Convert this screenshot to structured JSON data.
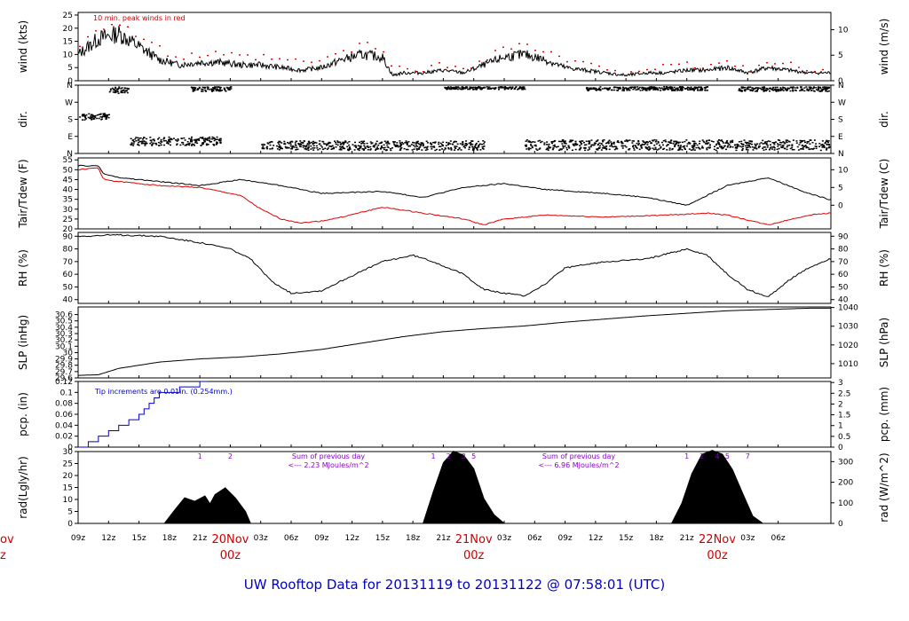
{
  "footer": {
    "title": "UW Rooftop Data for 20131119  to  20131122 @ 07:58:01  (UTC)"
  },
  "chart_data": [
    {
      "type": "line",
      "panel": "wind",
      "ylabel": "wind (kts)",
      "ylabel_right": "wind (m/s)",
      "ylim": [
        0,
        26
      ],
      "yticks": [
        0,
        5,
        10,
        15,
        20,
        25
      ],
      "yticks_right": [
        0,
        5,
        10
      ],
      "annotation": "10 min. peak winds in red",
      "series": [
        {
          "color": "#000000",
          "x": [
            0,
            2,
            4,
            6,
            8,
            9,
            10,
            12,
            14,
            16,
            18,
            20,
            22,
            24,
            26,
            28,
            30,
            31,
            32,
            34,
            36,
            38,
            40,
            42,
            44,
            46,
            48,
            50,
            52,
            54,
            56,
            58,
            60,
            62,
            64,
            66,
            68,
            70,
            72,
            74
          ],
          "y": [
            10,
            16,
            18,
            13,
            8,
            7,
            6,
            7,
            7,
            6,
            6,
            5,
            4,
            5,
            8,
            10,
            9,
            2,
            3,
            3,
            4,
            3,
            6,
            9,
            10,
            8,
            5,
            4,
            3,
            2,
            3,
            3,
            4,
            4,
            5,
            3,
            5,
            4,
            3,
            3
          ]
        },
        {
          "color": "#dd0000",
          "x": [
            0,
            2,
            4,
            6,
            8,
            9,
            10,
            12,
            14,
            16,
            18,
            20,
            22,
            24,
            26,
            28,
            30,
            31,
            32,
            34,
            36,
            38,
            40,
            42,
            44,
            46,
            48,
            50,
            52,
            54,
            56,
            58,
            60,
            62,
            64,
            66,
            68,
            70,
            72,
            74
          ],
          "y": [
            14,
            21,
            22,
            17,
            12,
            10,
            9,
            10,
            10,
            9,
            9,
            8,
            7,
            8,
            11,
            14,
            12,
            4,
            5,
            5,
            6,
            5,
            9,
            13,
            14,
            11,
            8,
            6,
            5,
            4,
            5,
            5,
            6,
            6,
            7,
            5,
            7,
            6,
            5,
            5
          ]
        }
      ]
    },
    {
      "type": "scatter",
      "panel": "dir",
      "ylabel": "dir.",
      "ylabel_right": "dir.",
      "ylim": [
        0,
        360
      ],
      "yticks": [
        0,
        90,
        180,
        270,
        360
      ],
      "yticklabels": [
        "N",
        "E",
        "S",
        "W",
        "N"
      ],
      "segments": [
        {
          "x": [
            0,
            3
          ],
          "y": [
            180,
            215
          ]
        },
        {
          "x": [
            3,
            5
          ],
          "y": [
            320,
            355
          ]
        },
        {
          "x": [
            5,
            14
          ],
          "y": [
            45,
            90
          ]
        },
        {
          "x": [
            11,
            15
          ],
          "y": [
            330,
            355
          ]
        },
        {
          "x": [
            18,
            40
          ],
          "y": [
            20,
            70
          ]
        },
        {
          "x": [
            36,
            44
          ],
          "y": [
            340,
            355
          ]
        },
        {
          "x": [
            44,
            74
          ],
          "y": [
            20,
            75
          ]
        },
        {
          "x": [
            50,
            62
          ],
          "y": [
            335,
            355
          ]
        },
        {
          "x": [
            65,
            74
          ],
          "y": [
            330,
            355
          ]
        }
      ]
    },
    {
      "type": "line",
      "panel": "temp",
      "ylabel": "Tair/Tdew (F)",
      "ylabel_right": "Tair/Tdew (C)",
      "ylim": [
        20,
        56
      ],
      "yticks": [
        20,
        25,
        30,
        35,
        40,
        45,
        50,
        55
      ],
      "yticks_right": [
        0,
        5,
        10
      ],
      "series": [
        {
          "color": "#000000",
          "x": [
            0,
            2,
            2.5,
            4,
            8,
            12,
            16,
            20,
            24,
            30,
            34,
            38,
            42,
            46,
            52,
            56,
            60,
            64,
            68,
            72,
            74
          ],
          "y": [
            52,
            52,
            48,
            46,
            44,
            42,
            45,
            42,
            38,
            39,
            36,
            41,
            43,
            40,
            38,
            36,
            32,
            42,
            46,
            38,
            35
          ]
        },
        {
          "color": "#dd0000",
          "x": [
            0,
            2,
            2.5,
            4,
            8,
            12,
            16,
            18,
            20,
            22,
            24,
            26,
            30,
            34,
            38,
            40,
            42,
            46,
            52,
            58,
            62,
            64,
            68,
            72,
            74
          ],
          "y": [
            50,
            51,
            45,
            44,
            42,
            41,
            37,
            30,
            25,
            23,
            24,
            26,
            31,
            28,
            25,
            22,
            25,
            27,
            26,
            27,
            28,
            27,
            22,
            27,
            28
          ]
        }
      ]
    },
    {
      "type": "line",
      "panel": "rh",
      "ylabel": "RH (%)",
      "ylabel_right": "RH (%)",
      "ylim": [
        37,
        93
      ],
      "yticks": [
        40,
        50,
        60,
        70,
        80,
        90
      ],
      "yticks_right": [
        40,
        50,
        60,
        70,
        80,
        90
      ],
      "series": [
        {
          "color": "#000000",
          "x": [
            0,
            4,
            8,
            12,
            15,
            17,
            19,
            21,
            24,
            26,
            30,
            33,
            35,
            38,
            40,
            42,
            44,
            46,
            48,
            52,
            56,
            60,
            62,
            64,
            66,
            68,
            70,
            72,
            74
          ],
          "y": [
            90,
            91,
            90,
            85,
            80,
            72,
            55,
            45,
            47,
            55,
            70,
            75,
            70,
            60,
            48,
            45,
            43,
            52,
            65,
            70,
            72,
            80,
            75,
            60,
            48,
            42,
            55,
            65,
            72
          ]
        }
      ]
    },
    {
      "type": "line",
      "panel": "slp",
      "ylabel": "SLP (inHg)",
      "ylabel_right": "SLP (hPa)",
      "ylim": [
        29.6,
        30.72
      ],
      "yticks": [
        29.6,
        29.7,
        29.8,
        29.9,
        30.0,
        30.1,
        30.2,
        30.3,
        30.4,
        30.5,
        30.6
      ],
      "yticks_right": [
        1010,
        1020,
        1030,
        1040
      ],
      "series": [
        {
          "color": "#000000",
          "x": [
            0,
            2,
            4,
            8,
            12,
            16,
            20,
            24,
            28,
            32,
            36,
            40,
            44,
            48,
            52,
            56,
            60,
            64,
            68,
            72,
            74
          ],
          "y": [
            29.64,
            29.65,
            29.75,
            29.85,
            29.9,
            29.93,
            29.98,
            30.05,
            30.15,
            30.25,
            30.33,
            30.38,
            30.42,
            30.48,
            30.53,
            30.58,
            30.62,
            30.66,
            30.68,
            30.7,
            30.7
          ]
        }
      ]
    },
    {
      "type": "line",
      "panel": "pcp",
      "ylabel": "pcp. (in)",
      "ylabel_right": "pcp. (mm)",
      "ylim": [
        0,
        0.12
      ],
      "yticks": [
        0.0,
        0.02,
        0.04,
        0.06,
        0.08,
        0.1,
        0.12
      ],
      "yticks_right": [
        0,
        0.5,
        1,
        1.5,
        2,
        2.5,
        3
      ],
      "annotation": "Tip increments are 0.01in. (0.254mm.)",
      "series": [
        {
          "color": "#0000cc",
          "step": true,
          "x": [
            0,
            1,
            2,
            3,
            4,
            5,
            6,
            6.5,
            7,
            7.5,
            8,
            9,
            10,
            11,
            12,
            12.7
          ],
          "y": [
            0.0,
            0.01,
            0.02,
            0.03,
            0.04,
            0.05,
            0.06,
            0.07,
            0.08,
            0.09,
            0.1,
            0.1,
            0.11,
            0.11,
            0.12,
            0.12
          ]
        }
      ]
    },
    {
      "type": "area",
      "panel": "rad",
      "ylabel": "rad(Lgly/hr)",
      "ylabel_right": "rad (W/m^2)",
      "ylim": [
        0,
        30
      ],
      "yticks": [
        0,
        5,
        10,
        15,
        20,
        25,
        30
      ],
      "yticks_right": [
        0,
        100,
        200,
        300
      ],
      "annotations": [
        "Sum of previous day\n<--- 2.23 MJoules/m^2",
        "Sum of previous day\n<--- 6.96 MJoules/m^2"
      ],
      "top_labels": [
        {
          "x": 12,
          "label": "1"
        },
        {
          "x": 15,
          "label": "2"
        },
        {
          "x": 35,
          "label": "1"
        },
        {
          "x": 36.5,
          "label": "2"
        },
        {
          "x": 38,
          "label": "3"
        },
        {
          "x": 39,
          "label": "5"
        },
        {
          "x": 60,
          "label": "1"
        },
        {
          "x": 61.5,
          "label": "2"
        },
        {
          "x": 63,
          "label": "4"
        },
        {
          "x": 64,
          "label": "5"
        },
        {
          "x": 66,
          "label": "7"
        }
      ],
      "series": [
        {
          "color": "#000000",
          "x": [
            8.5,
            9.5,
            10.5,
            11.5,
            12.5,
            13,
            13.5,
            14.5,
            15.5,
            16.5,
            17,
            34,
            35,
            36,
            37,
            38,
            39,
            40,
            41,
            42,
            58.5,
            59.5,
            60.5,
            61.5,
            62.5,
            63.5,
            64.5,
            65.5,
            66.5,
            67.5
          ],
          "y": [
            0,
            5,
            10,
            9,
            11,
            8,
            12,
            14,
            10,
            4,
            0,
            0,
            12,
            25,
            30,
            28,
            22,
            10,
            3,
            0,
            0,
            8,
            20,
            28,
            30,
            28,
            22,
            12,
            3,
            0
          ]
        }
      ]
    },
    {
      "type": "x-axis",
      "xlim": [
        0,
        74.2
      ],
      "xticks": [
        {
          "x": 0,
          "label": "09z"
        },
        {
          "x": 3,
          "label": "12z"
        },
        {
          "x": 6,
          "label": "15z"
        },
        {
          "x": 9,
          "label": "18z"
        },
        {
          "x": 12,
          "label": "21z"
        },
        {
          "x": 15,
          "label": "20Nov"
        },
        {
          "x": 18,
          "label": "03z"
        },
        {
          "x": 21,
          "label": "06z"
        },
        {
          "x": 24,
          "label": "09z"
        },
        {
          "x": 27,
          "label": "12z"
        },
        {
          "x": 30,
          "label": "15z"
        },
        {
          "x": 33,
          "label": "18z"
        },
        {
          "x": 36,
          "label": "21z"
        },
        {
          "x": 39,
          "label": "21Nov"
        },
        {
          "x": 42,
          "label": "03z"
        },
        {
          "x": 45,
          "label": "06z"
        },
        {
          "x": 48,
          "label": "09z"
        },
        {
          "x": 51,
          "label": "12z"
        },
        {
          "x": 54,
          "label": "15z"
        },
        {
          "x": 57,
          "label": "18z"
        },
        {
          "x": 60,
          "label": "21z"
        },
        {
          "x": 63,
          "label": "22Nov"
        },
        {
          "x": 66,
          "label": "03z"
        },
        {
          "x": 69,
          "label": "06z"
        }
      ],
      "day_labels": [
        {
          "x": 15,
          "day": "20Nov",
          "hour": "00z"
        },
        {
          "x": 39,
          "day": "21Nov",
          "hour": "00z"
        },
        {
          "x": 63,
          "day": "22Nov",
          "hour": "00z"
        }
      ],
      "cut_label": {
        "day": "ov",
        "hour": "z"
      }
    }
  ]
}
